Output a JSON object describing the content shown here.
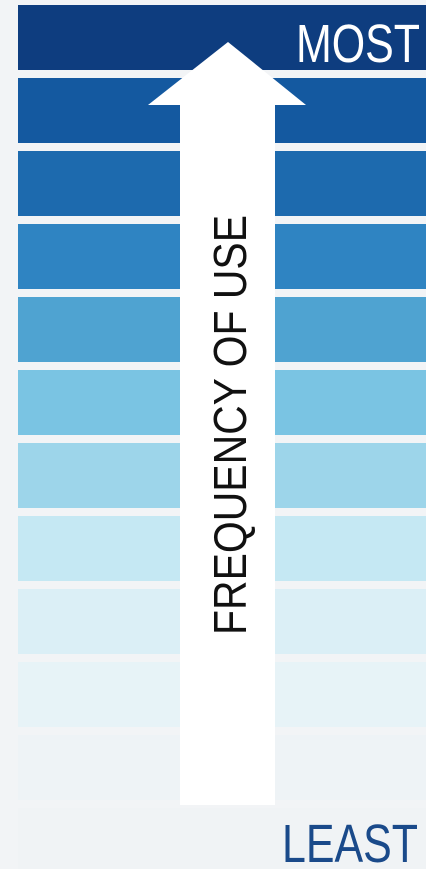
{
  "labels": {
    "top": "MOST",
    "bottom": "LEAST"
  },
  "arrow": {
    "label": "FREQUENCY OF USE"
  }
}
